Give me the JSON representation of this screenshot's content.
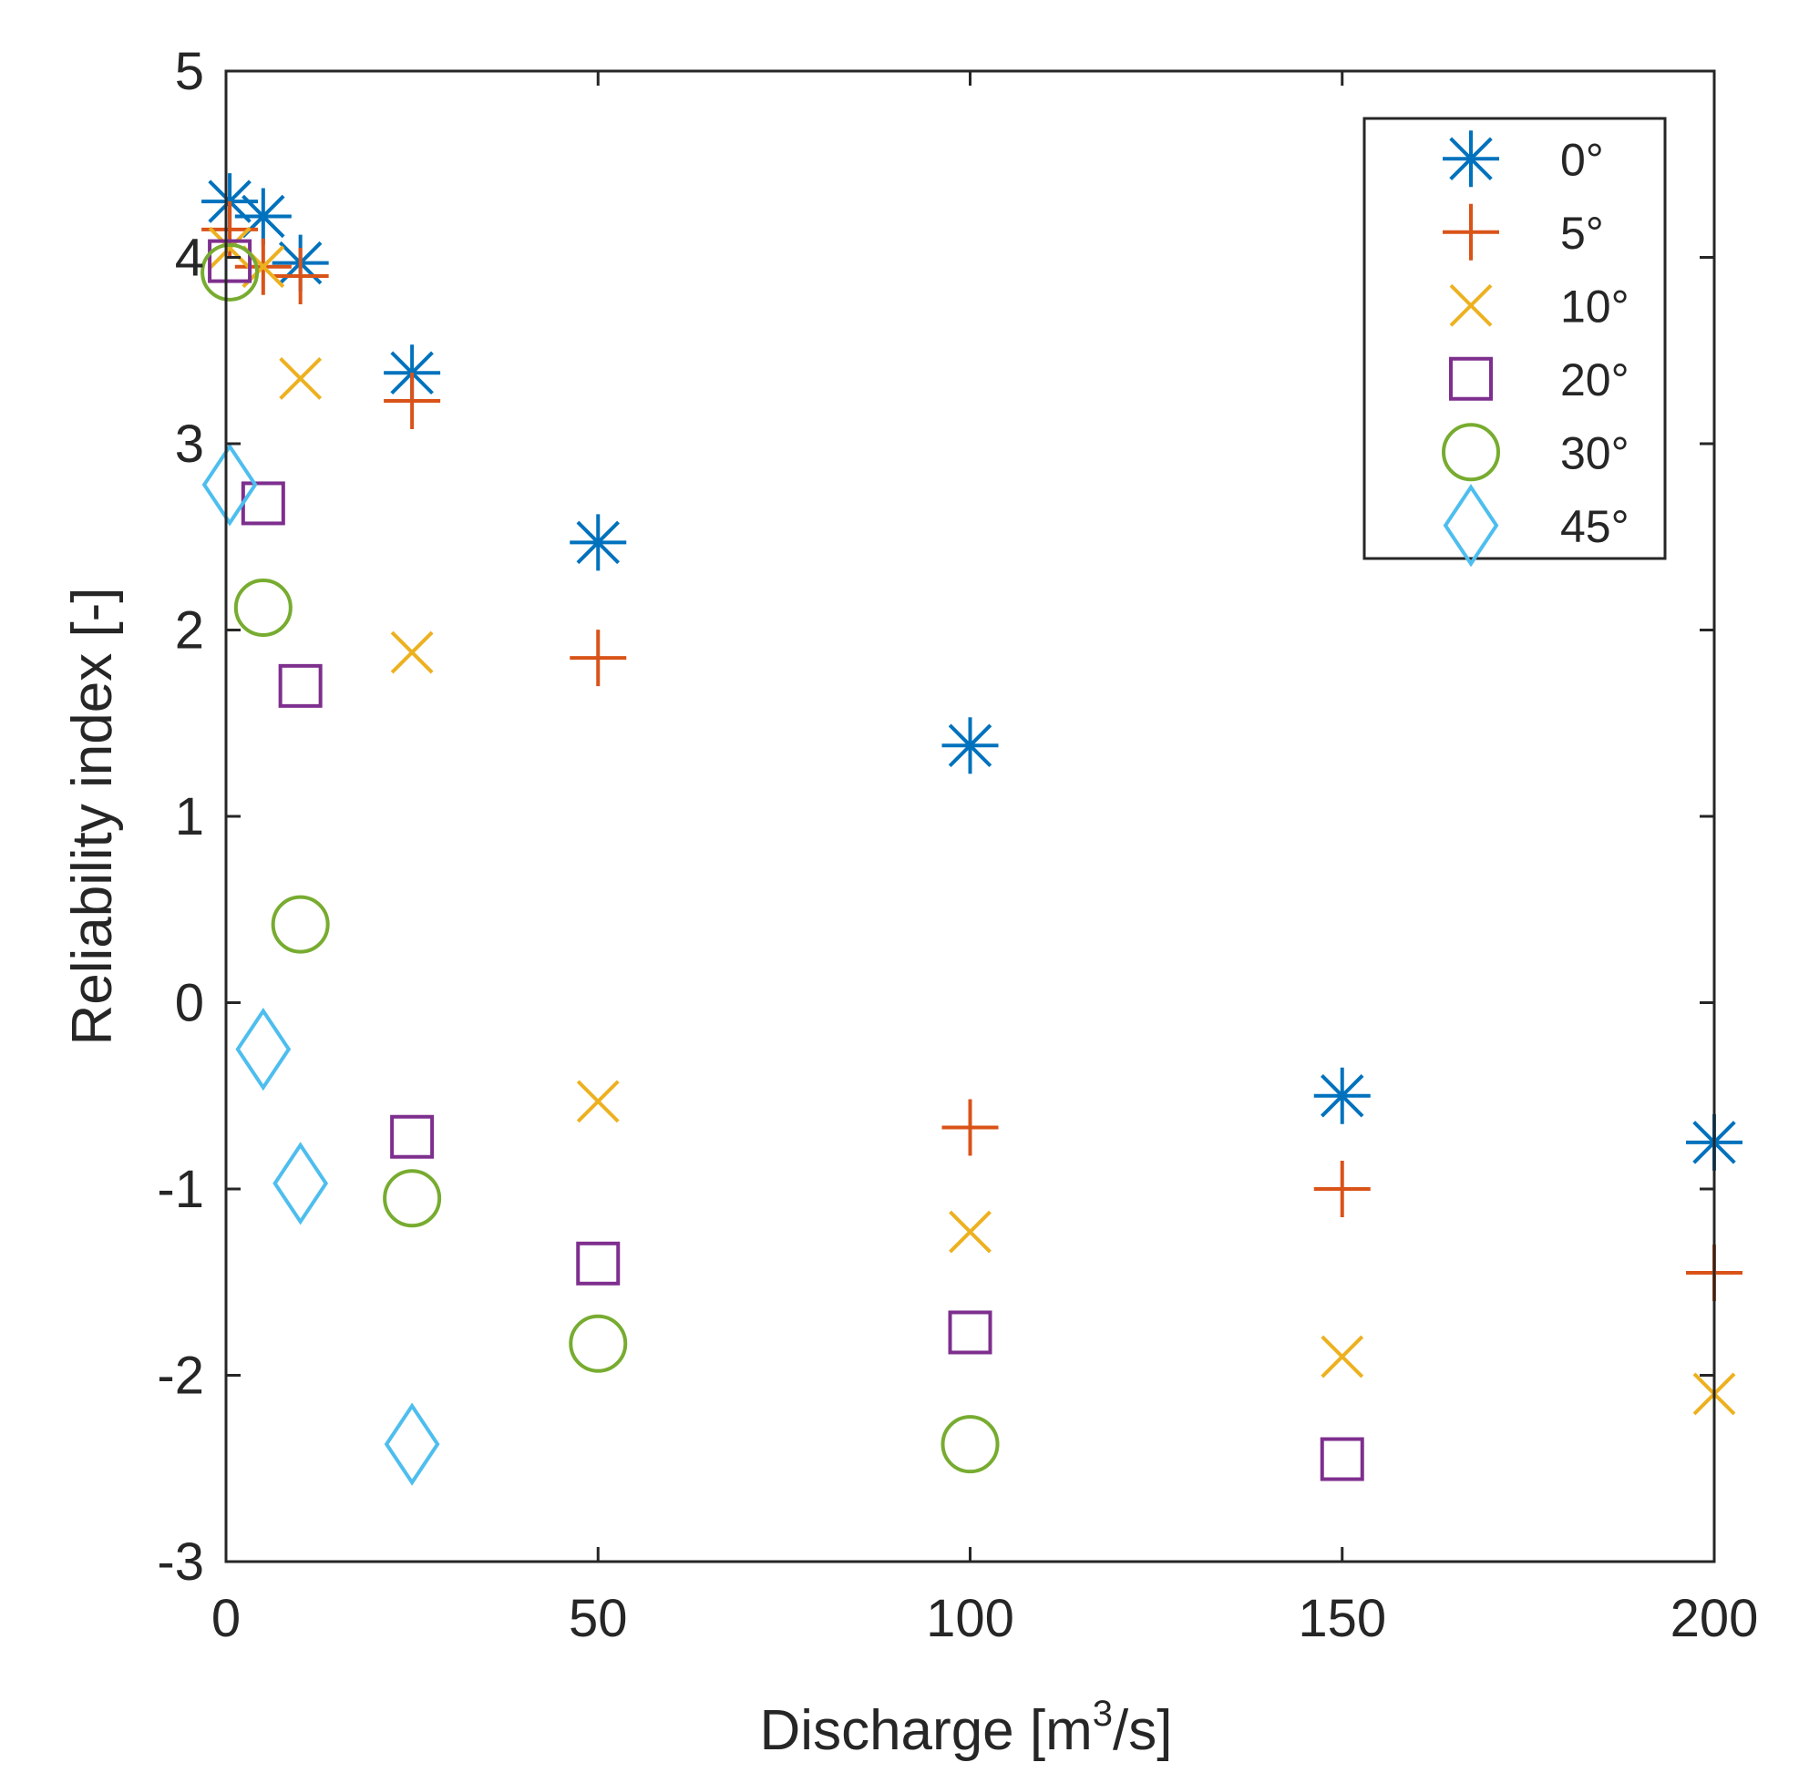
{
  "chart_data": {
    "type": "scatter",
    "title": "",
    "xlabel": "Discharge [m",
    "xlabel_superscript": "3",
    "xlabel_suffix": "/s]",
    "ylabel": "Reliability index [-]",
    "xlim": [
      0,
      200
    ],
    "ylim": [
      -3,
      5
    ],
    "xticks": [
      "0",
      "50",
      "100",
      "150",
      "200"
    ],
    "yticks": [
      "-3",
      "-2",
      "-1",
      "0",
      "1",
      "2",
      "3",
      "4",
      "5"
    ],
    "grid": false,
    "legend_position": "top-right",
    "series": [
      {
        "name": "0°",
        "marker": "asterisk",
        "color": "#0072BD",
        "x": [
          0.5,
          5,
          10,
          25,
          50,
          100,
          150,
          200
        ],
        "y": [
          4.3,
          4.22,
          3.97,
          3.38,
          2.47,
          1.38,
          -0.5,
          -0.75
        ]
      },
      {
        "name": "5°",
        "marker": "plus",
        "color": "#D95319",
        "x": [
          0.5,
          5,
          10,
          25,
          50,
          100,
          150,
          200
        ],
        "y": [
          4.15,
          3.95,
          3.9,
          3.23,
          1.85,
          -0.67,
          -1.0,
          -1.45
        ]
      },
      {
        "name": "10°",
        "marker": "cross",
        "color": "#EDB120",
        "x": [
          0.5,
          5,
          10,
          25,
          50,
          100,
          150,
          200
        ],
        "y": [
          4.05,
          3.95,
          3.35,
          1.88,
          -0.53,
          -1.23,
          -1.9,
          -2.1
        ]
      },
      {
        "name": "20°",
        "marker": "square",
        "color": "#7E2F8E",
        "x": [
          0.5,
          5,
          10,
          25,
          50,
          100,
          150
        ],
        "y": [
          3.98,
          2.68,
          1.7,
          -0.72,
          -1.4,
          -1.77,
          -2.45
        ]
      },
      {
        "name": "30°",
        "marker": "circle",
        "color": "#77AC30",
        "x": [
          0.5,
          5,
          10,
          25,
          50,
          100
        ],
        "y": [
          3.92,
          2.12,
          0.42,
          -1.05,
          -1.83,
          -2.37
        ]
      },
      {
        "name": "45°",
        "marker": "diamond",
        "color": "#4DBEEE",
        "x": [
          0.5,
          5,
          10,
          25
        ],
        "y": [
          2.78,
          -0.25,
          -0.97,
          -2.37
        ]
      }
    ]
  }
}
